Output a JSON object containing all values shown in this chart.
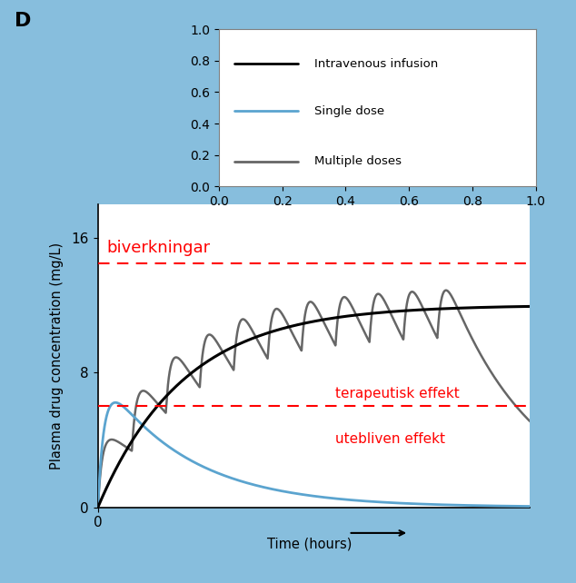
{
  "background_color": "#87BEDD",
  "plot_bg_color": "#FFFFFF",
  "title_label": "D",
  "ylabel": "Plasma drug concentration (mg/L)",
  "xlabel": "Time (hours)",
  "ylim": [
    0,
    18
  ],
  "xlim": [
    0,
    28
  ],
  "yticks": [
    0,
    8,
    16
  ],
  "xticks": [
    0
  ],
  "dashed_line_1_y": 14.5,
  "dashed_line_2_y": 6.0,
  "label_biverkningar": "biverkningar",
  "label_terapeutisk": "terapeutisk effekt",
  "label_utebliven": "utebliven effekt",
  "red_color": "#FF0000",
  "iv_color": "#000000",
  "single_color": "#5BA4CF",
  "multiple_color": "#666666",
  "legend_labels": [
    "Intravenous infusion",
    "Single dose",
    "Multiple doses"
  ],
  "iv_ss": 12.0,
  "single_peak": 6.0,
  "single_peak_time": 0.8,
  "single_ke": 0.18,
  "multiple_dose_interval": 2.2,
  "multiple_peak_rise": 2.8,
  "multiple_ke": 1.8,
  "multiple_accumulation_ss": 12.5
}
